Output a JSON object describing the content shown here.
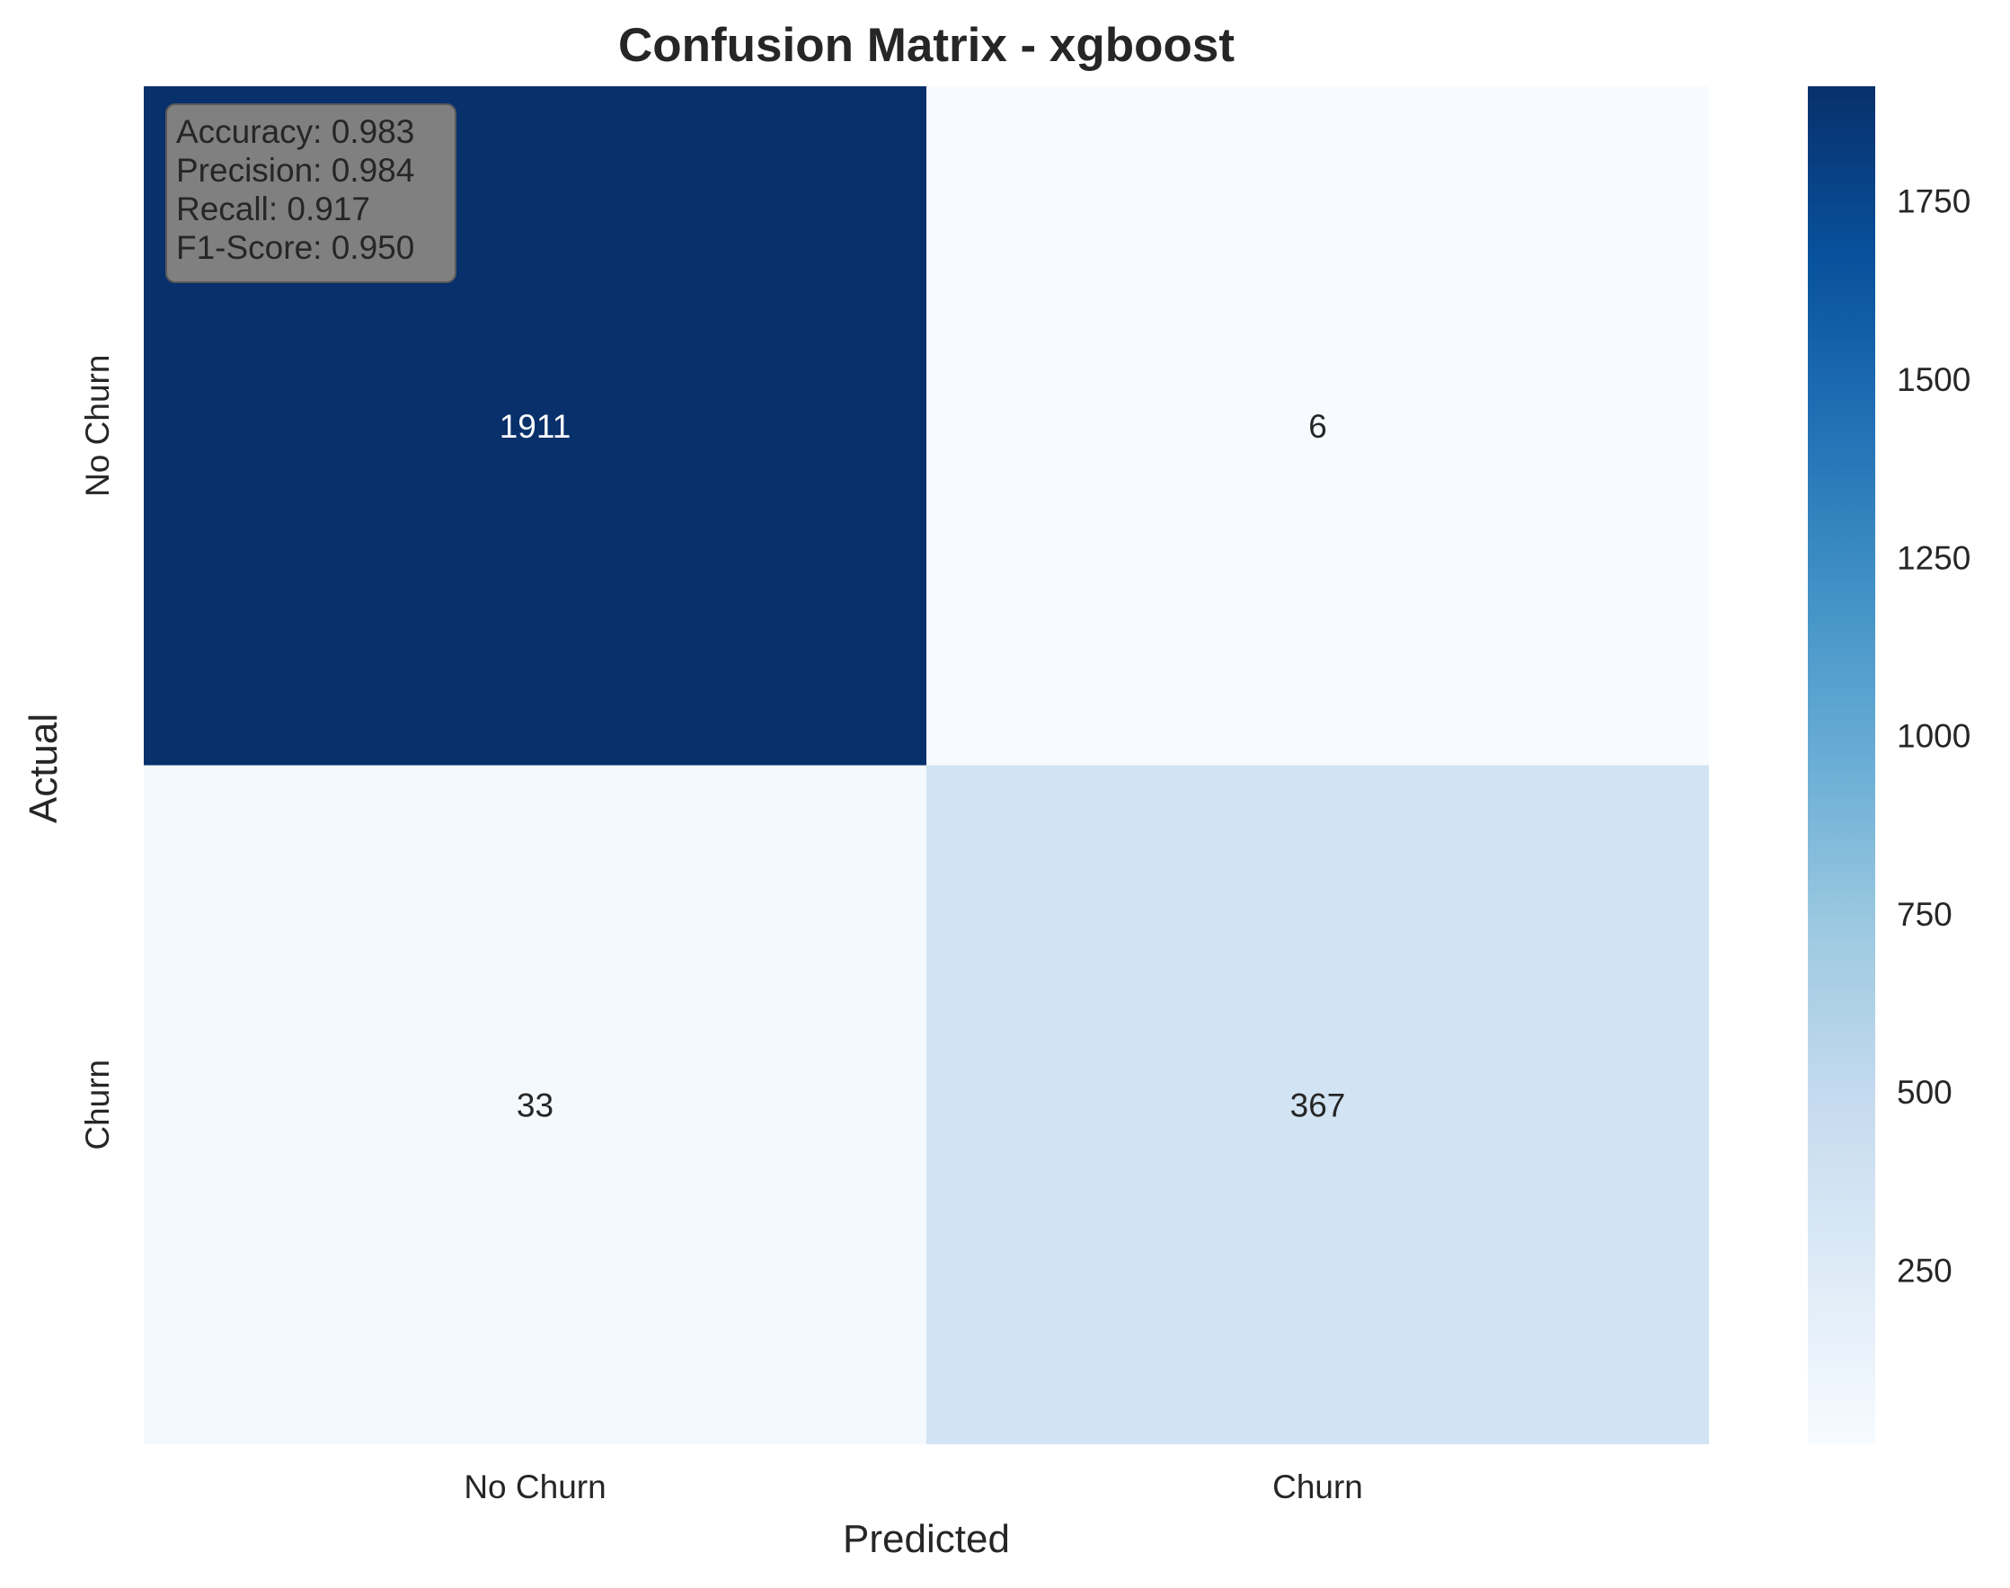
{
  "chart_data": {
    "type": "heatmap",
    "title": "Confusion Matrix - xgboost",
    "xlabel": "Predicted",
    "ylabel": "Actual",
    "x_categories": [
      "No Churn",
      "Churn"
    ],
    "y_categories": [
      "No Churn",
      "Churn"
    ],
    "matrix": [
      [
        1911,
        6
      ],
      [
        33,
        367
      ]
    ],
    "colormap": "Blues",
    "colorbar": {
      "ticks": [
        250,
        500,
        750,
        1000,
        1250,
        1500,
        1750
      ],
      "range": [
        6,
        1911
      ]
    },
    "metrics_box": {
      "lines": [
        "Accuracy: 0.983",
        "Precision: 0.984",
        "Recall: 0.917",
        "F1-Score: 0.950"
      ],
      "position": "top-left",
      "background": "#808080"
    },
    "grid": false
  }
}
